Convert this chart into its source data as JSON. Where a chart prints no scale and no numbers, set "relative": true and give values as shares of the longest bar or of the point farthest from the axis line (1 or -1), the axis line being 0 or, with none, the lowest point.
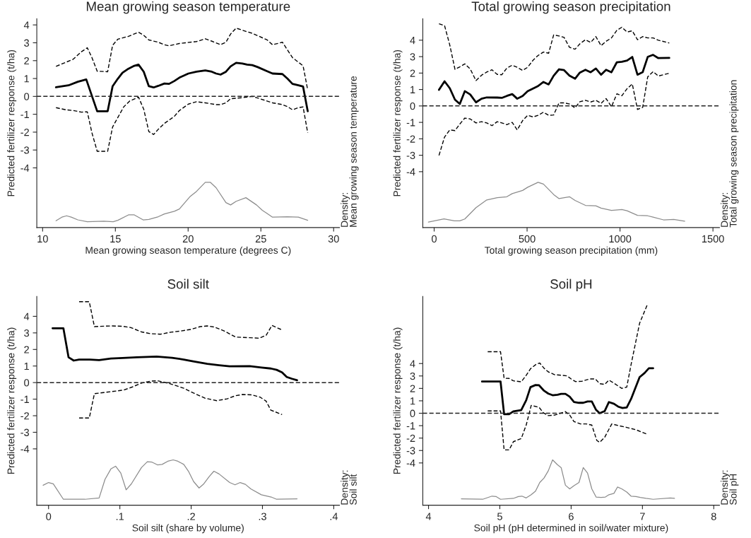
{
  "chart_data": [
    {
      "type": "line",
      "title": "Mean growing season temperature",
      "xlabel": "Mean growing season temperature (degrees C)",
      "ylabel": "Predicted fertilizer response (t/ha)",
      "xlim": [
        9.6,
        30.4
      ],
      "xticks": [
        10,
        15,
        20,
        25,
        30
      ],
      "ylim": [
        -7.34,
        4.34
      ],
      "yticks": [
        -4,
        -3,
        -2,
        -1,
        0,
        1,
        2,
        3,
        4
      ],
      "grid": false,
      "legend": false,
      "ref_lines": [
        {
          "axis": "y",
          "value": 0,
          "line_style": "dashed",
          "color": "#222222"
        }
      ],
      "series": [
        {
          "color": "#000000",
          "line_style": "solid",
          "x": [
            10.92,
            11.78,
            12.42,
            13.0,
            13.75,
            14.47,
            14.81,
            15.17,
            15.49,
            15.9,
            16.3,
            16.59,
            16.95,
            17.3,
            17.63,
            17.95,
            18.37,
            18.69,
            19.05,
            19.4,
            20.02,
            20.58,
            21.18,
            21.63,
            21.92,
            22.23,
            22.6,
            22.92,
            23.3,
            23.73,
            24.05,
            24.41,
            24.78,
            25.43,
            25.8,
            26.48,
            26.83,
            27.17,
            27.58,
            27.9,
            28.22
          ],
          "values": [
            0.51,
            0.62,
            0.82,
            0.95,
            -0.83,
            -0.83,
            0.57,
            0.99,
            1.32,
            1.55,
            1.71,
            1.78,
            1.38,
            0.57,
            0.5,
            0.59,
            0.72,
            0.7,
            0.86,
            1.05,
            1.28,
            1.38,
            1.45,
            1.38,
            1.28,
            1.22,
            1.38,
            1.68,
            1.88,
            1.84,
            1.78,
            1.75,
            1.64,
            1.41,
            1.28,
            1.25,
            0.99,
            0.7,
            0.62,
            0.55,
            -0.83
          ]
        },
        {
          "color": "#000000",
          "line_style": "dashed",
          "x": [
            10.92,
            11.6,
            12.1,
            12.67,
            13.07,
            13.39,
            13.75,
            14.47,
            14.81,
            15.17,
            15.9,
            16.59,
            16.95,
            17.3,
            17.95,
            18.37,
            18.69,
            19.4,
            20.58,
            21.18,
            21.63,
            22.23,
            22.6,
            22.92,
            23.3,
            24.05,
            24.41,
            25.43,
            25.8,
            26.48,
            27.17,
            27.9,
            28.22
          ],
          "values": [
            1.68,
            1.91,
            2.08,
            2.5,
            2.72,
            2.17,
            1.41,
            1.38,
            2.86,
            3.2,
            3.36,
            3.59,
            3.42,
            3.16,
            3.03,
            2.89,
            2.83,
            2.96,
            3.07,
            3.22,
            3.09,
            2.89,
            3.03,
            3.49,
            3.82,
            3.62,
            3.53,
            3.16,
            2.89,
            3.03,
            2.17,
            1.71,
            0.36
          ]
        },
        {
          "color": "#000000",
          "line_style": "dashed",
          "x": [
            10.92,
            11.6,
            12.1,
            12.67,
            13.07,
            13.39,
            13.75,
            14.47,
            14.81,
            15.17,
            15.57,
            15.98,
            16.59,
            16.95,
            17.3,
            17.63,
            17.95,
            18.37,
            19.05,
            19.4,
            20.02,
            20.58,
            21.18,
            21.92,
            22.23,
            22.6,
            22.92,
            23.73,
            24.41,
            24.78,
            25.8,
            26.48,
            26.83,
            27.17,
            27.58,
            27.9,
            28.22
          ],
          "values": [
            -0.63,
            -0.75,
            -0.79,
            -0.88,
            -0.86,
            -2.04,
            -3.07,
            -3.07,
            -1.71,
            -1.18,
            -0.59,
            -0.26,
            -0.04,
            -0.72,
            -1.97,
            -2.13,
            -1.84,
            -1.51,
            -1.12,
            -0.79,
            -0.43,
            -0.3,
            -0.36,
            -0.46,
            -0.46,
            -0.36,
            -0.13,
            -0.07,
            0.0,
            -0.09,
            -0.36,
            -0.46,
            -0.57,
            -0.75,
            -0.63,
            -0.59,
            -2.04
          ]
        }
      ]
    },
    {
      "type": "line",
      "relative": true,
      "ylabel": "Density:\nMean growing season temperature",
      "xlim": [
        9.6,
        30.4
      ],
      "tick_labels": false,
      "series": [
        {
          "color": "#8c8c8c",
          "line_style": "solid",
          "x": [
            10.92,
            11.32,
            11.65,
            11.97,
            12.42,
            13.07,
            14.2,
            14.85,
            15.17,
            15.9,
            16.3,
            16.91,
            17.3,
            17.95,
            18.37,
            19.05,
            19.4,
            19.69,
            20.15,
            20.58,
            21.18,
            21.52,
            21.92,
            22.6,
            22.92,
            23.3,
            23.97,
            24.7,
            25.1,
            25.43,
            25.8,
            26.83,
            27.58,
            28.22
          ],
          "values": [
            0.15,
            0.23,
            0.26,
            0.23,
            0.17,
            0.13,
            0.14,
            0.13,
            0.16,
            0.28,
            0.28,
            0.17,
            0.18,
            0.24,
            0.3,
            0.36,
            0.41,
            0.52,
            0.69,
            0.8,
            1.0,
            1.0,
            0.88,
            0.55,
            0.5,
            0.58,
            0.66,
            0.5,
            0.38,
            0.31,
            0.23,
            0.24,
            0.23,
            0.16
          ]
        }
      ]
    },
    {
      "type": "line",
      "title": "Total growing season precipitation",
      "xlabel": "Total growing season precipitation (mm)",
      "ylabel": "Predicted fertilizer response (t/ha)",
      "xlim": [
        -61,
        1535
      ],
      "xticks": [
        0,
        500,
        1000,
        1500
      ],
      "ylim": [
        -7.4,
        5.3
      ],
      "yticks": [
        -4,
        -3,
        -2,
        -1,
        0,
        1,
        2,
        3,
        4
      ],
      "grid": false,
      "legend": false,
      "ref_lines": [
        {
          "axis": "y",
          "value": 0,
          "line_style": "dashed",
          "color": "#222222"
        }
      ],
      "series": [
        {
          "color": "#000000",
          "line_style": "solid",
          "x": [
            26,
            56,
            84,
            112,
            138,
            165,
            194,
            225,
            255,
            283,
            339,
            364,
            391,
            420,
            447,
            476,
            503,
            559,
            588,
            616,
            643,
            672,
            699,
            728,
            758,
            784,
            814,
            842,
            870,
            898,
            925,
            954,
            983,
            1010,
            1038,
            1066,
            1094,
            1122,
            1149,
            1178,
            1206,
            1265
          ],
          "values": [
            0.98,
            1.5,
            1.08,
            0.38,
            0.12,
            0.9,
            0.7,
            0.22,
            0.44,
            0.52,
            0.51,
            0.49,
            0.61,
            0.72,
            0.44,
            0.61,
            0.9,
            1.21,
            1.46,
            1.31,
            1.84,
            2.23,
            2.18,
            1.84,
            1.66,
            2.03,
            2.2,
            2.05,
            2.28,
            1.9,
            2.2,
            2.05,
            2.66,
            2.69,
            2.76,
            2.98,
            1.9,
            2.06,
            2.98,
            3.11,
            2.91,
            2.92
          ]
        },
        {
          "color": "#000000",
          "line_style": "dashed",
          "x": [
            26,
            56,
            84,
            112,
            138,
            165,
            194,
            225,
            255,
            283,
            311,
            339,
            364,
            391,
            420,
            447,
            476,
            503,
            532,
            559,
            588,
            616,
            643,
            672,
            699,
            728,
            758,
            784,
            814,
            842,
            870,
            898,
            925,
            954,
            983,
            1010,
            1038,
            1066,
            1094,
            1122,
            1149,
            1178,
            1206,
            1265
          ],
          "values": [
            5.0,
            4.89,
            3.71,
            2.23,
            2.38,
            2.56,
            2.25,
            1.54,
            1.87,
            2.06,
            2.2,
            1.92,
            1.9,
            2.3,
            2.48,
            2.35,
            2.16,
            2.35,
            2.78,
            3.07,
            3.28,
            3.21,
            4.32,
            4.26,
            4.17,
            3.57,
            3.45,
            3.78,
            4.03,
            3.86,
            4.22,
            3.67,
            3.93,
            4.14,
            4.6,
            4.79,
            4.5,
            4.57,
            4.03,
            4.22,
            4.14,
            4.14,
            4.0,
            3.83
          ]
        },
        {
          "color": "#000000",
          "line_style": "dashed",
          "x": [
            26,
            56,
            84,
            112,
            138,
            165,
            194,
            225,
            255,
            283,
            311,
            339,
            364,
            391,
            420,
            447,
            476,
            503,
            532,
            559,
            588,
            616,
            643,
            672,
            699,
            728,
            758,
            784,
            814,
            842,
            870,
            898,
            925,
            954,
            983,
            1010,
            1038,
            1066,
            1094,
            1122,
            1149,
            1178,
            1206,
            1265
          ],
          "values": [
            -3.01,
            -1.89,
            -1.46,
            -1.5,
            -1.1,
            -0.74,
            -0.79,
            -1.03,
            -0.96,
            -1.03,
            -1.2,
            -0.96,
            -1.03,
            -1.14,
            -1.0,
            -1.46,
            -0.89,
            -0.57,
            -0.67,
            -0.57,
            -0.38,
            -0.57,
            -0.55,
            0.19,
            0.19,
            0.12,
            -0.12,
            0.26,
            0.34,
            0.24,
            0.34,
            0.16,
            0.45,
            -0.05,
            0.74,
            0.62,
            1.05,
            1.34,
            -0.21,
            -0.09,
            1.77,
            2.09,
            1.82,
            1.99
          ]
        }
      ]
    },
    {
      "type": "line",
      "relative": true,
      "ylabel": "Density:\nTotal growing season precipitation",
      "xlim": [
        -61,
        1535
      ],
      "tick_labels": false,
      "series": [
        {
          "color": "#8c8c8c",
          "line_style": "solid",
          "x": [
            -31,
            53,
            109,
            138,
            165,
            225,
            283,
            339,
            391,
            420,
            476,
            503,
            559,
            588,
            643,
            672,
            728,
            758,
            814,
            870,
            898,
            954,
            1010,
            1038,
            1094,
            1149,
            1178,
            1234,
            1289,
            1348
          ],
          "values": [
            0.12,
            0.19,
            0.15,
            0.15,
            0.19,
            0.44,
            0.61,
            0.66,
            0.68,
            0.75,
            0.82,
            0.89,
            1.0,
            0.96,
            0.73,
            0.64,
            0.68,
            0.6,
            0.49,
            0.48,
            0.43,
            0.38,
            0.4,
            0.37,
            0.27,
            0.26,
            0.23,
            0.17,
            0.18,
            0.14
          ]
        }
      ]
    },
    {
      "type": "line",
      "title": "Soil silt",
      "xlabel": "Soil silt (share by volume)",
      "ylabel": "Predicted fertilizer response (t/ha)",
      "xlim": [
        -0.0165,
        0.408
      ],
      "xticks": [
        0,
        {
          "value": 0.1,
          "label": ".1"
        },
        {
          "value": 0.2,
          "label": ".2"
        },
        {
          "value": 0.3,
          "label": ".3"
        },
        {
          "value": 0.4,
          "label": ".4"
        }
      ],
      "ylim": [
        -7.4,
        5.2
      ],
      "yticks": [
        -4,
        -3,
        -2,
        -1,
        0,
        1,
        2,
        3,
        4
      ],
      "grid": false,
      "legend": false,
      "ref_lines": [
        {
          "axis": "y",
          "value": 0,
          "line_style": "dashed",
          "color": "#222222"
        }
      ],
      "series": [
        {
          "color": "#000000",
          "line_style": "solid",
          "x": [
            0.0056,
            0.0208,
            0.028,
            0.0353,
            0.0429,
            0.0577,
            0.0709,
            0.0874,
            0.1039,
            0.1237,
            0.1517,
            0.1732,
            0.1896,
            0.2028,
            0.2226,
            0.2391,
            0.254,
            0.282,
            0.2985,
            0.3117,
            0.3199,
            0.3275,
            0.3341,
            0.3414,
            0.3486
          ],
          "values": [
            3.28,
            3.28,
            1.53,
            1.33,
            1.39,
            1.39,
            1.36,
            1.45,
            1.48,
            1.53,
            1.57,
            1.5,
            1.39,
            1.28,
            1.13,
            1.05,
            0.98,
            0.99,
            0.91,
            0.85,
            0.77,
            0.62,
            0.34,
            0.23,
            0.14
          ]
        },
        {
          "color": "#000000",
          "line_style": "dashed",
          "x": [
            0.0429,
            0.0571,
            0.0643,
            0.0874,
            0.1039,
            0.1154,
            0.1303,
            0.1435,
            0.1567,
            0.1715,
            0.1847,
            0.1995,
            0.2127,
            0.2226,
            0.2325,
            0.2457,
            0.2622,
            0.282,
            0.2952,
            0.3051,
            0.3133,
            0.3275
          ],
          "values": [
            4.88,
            4.88,
            3.38,
            3.42,
            3.4,
            3.32,
            3.06,
            2.95,
            2.92,
            3.04,
            3.11,
            3.21,
            3.38,
            3.42,
            3.35,
            3.13,
            2.75,
            2.71,
            2.68,
            2.85,
            3.45,
            3.18
          ]
        },
        {
          "color": "#000000",
          "line_style": "dashed",
          "x": [
            0.0429,
            0.0571,
            0.0643,
            0.0775,
            0.0874,
            0.1055,
            0.1171,
            0.1303,
            0.1435,
            0.1527,
            0.1699,
            0.1896,
            0.2028,
            0.2193,
            0.2358,
            0.2507,
            0.2622,
            0.2721,
            0.2853,
            0.2968,
            0.3051,
            0.3117,
            0.3275
          ],
          "values": [
            -2.14,
            -2.14,
            -0.67,
            -0.6,
            -0.55,
            -0.45,
            -0.27,
            -0.03,
            0.09,
            0.11,
            -0.06,
            -0.34,
            -0.62,
            -0.94,
            -1.09,
            -0.98,
            -0.79,
            -0.72,
            -0.74,
            -0.88,
            -1.12,
            -1.66,
            -1.93
          ]
        }
      ]
    },
    {
      "type": "line",
      "relative": true,
      "ylabel": "Density:\nSoil silt",
      "xlim": [
        -0.0165,
        0.408
      ],
      "tick_labels": false,
      "series": [
        {
          "color": "#8c8c8c",
          "line_style": "solid",
          "x": [
            -0.0076,
            0,
            0.0066,
            0.0208,
            0.0511,
            0.0709,
            0.0792,
            0.0874,
            0.094,
            0.1013,
            0.1088,
            0.1161,
            0.1303,
            0.1385,
            0.1451,
            0.1527,
            0.1593,
            0.1672,
            0.1748,
            0.1814,
            0.1896,
            0.1962,
            0.2035,
            0.2111,
            0.2177,
            0.2253,
            0.2319,
            0.2391,
            0.254,
            0.2615,
            0.2688,
            0.2761,
            0.2836,
            0.2985,
            0.3123,
            0.3199,
            0.3486
          ],
          "values": [
            0.44,
            0.5,
            0.47,
            0.13,
            0.13,
            0.16,
            0.57,
            0.8,
            0.86,
            0.71,
            0.34,
            0.47,
            0.83,
            0.96,
            0.95,
            0.89,
            0.9,
            0.97,
            1.0,
            0.97,
            0.9,
            0.75,
            0.52,
            0.38,
            0.47,
            0.63,
            0.75,
            0.69,
            0.5,
            0.45,
            0.5,
            0.46,
            0.36,
            0.23,
            0.18,
            0.13,
            0.14
          ]
        }
      ]
    },
    {
      "type": "line",
      "title": "Soil pH",
      "xlabel": "Soil pH (pH determined in soil/water mixture)",
      "ylabel": "Predicted fertilizer response (t/ha)",
      "xlim": [
        3.92,
        8.08
      ],
      "xticks": [
        4,
        5,
        6,
        7,
        8
      ],
      "ylim": [
        -7.4,
        9.4
      ],
      "yticks": [
        -4,
        -3,
        -2,
        -1,
        0,
        1,
        2,
        3,
        4
      ],
      "grid": false,
      "legend": false,
      "ref_lines": [
        {
          "axis": "y",
          "value": 0,
          "line_style": "dashed",
          "color": "#222222"
        }
      ],
      "series": [
        {
          "color": "#000000",
          "line_style": "solid",
          "x": [
            4.75,
            5.01,
            5.06,
            5.13,
            5.19,
            5.3,
            5.37,
            5.43,
            5.5,
            5.55,
            5.62,
            5.68,
            5.74,
            5.81,
            5.86,
            5.92,
            5.98,
            6.04,
            6.11,
            6.17,
            6.23,
            6.29,
            6.35,
            6.4,
            6.47,
            6.53,
            6.6,
            6.66,
            6.72,
            6.78,
            6.84,
            6.96,
            7.03,
            7.09,
            7.15
          ],
          "values": [
            2.55,
            2.55,
            -0.08,
            -0.08,
            0.15,
            0.25,
            1.05,
            2.1,
            2.27,
            2.25,
            1.81,
            1.58,
            1.45,
            1.49,
            1.56,
            1.56,
            1.33,
            0.91,
            0.84,
            0.84,
            0.95,
            0.95,
            0.27,
            0.0,
            0.17,
            0.9,
            0.76,
            0.53,
            0.42,
            0.46,
            1.14,
            2.9,
            3.24,
            3.62,
            3.62
          ]
        },
        {
          "color": "#000000",
          "line_style": "dashed",
          "x": [
            4.83,
            5.01,
            5.06,
            5.13,
            5.19,
            5.3,
            5.37,
            5.43,
            5.51,
            5.56,
            5.62,
            5.68,
            5.77,
            5.87,
            5.94,
            6.0,
            6.06,
            6.15,
            6.26,
            6.34,
            6.4,
            6.47,
            6.53,
            6.61,
            6.71,
            6.78,
            6.84,
            6.96,
            7.07
          ],
          "values": [
            4.95,
            4.95,
            2.82,
            2.8,
            2.61,
            2.53,
            3.05,
            3.58,
            3.94,
            4.04,
            3.62,
            3.33,
            3.1,
            3.05,
            3.01,
            2.76,
            2.55,
            2.57,
            2.76,
            2.76,
            2.38,
            2.32,
            2.67,
            2.38,
            2.0,
            2.1,
            3.9,
            7.24,
            8.76
          ]
        },
        {
          "color": "#000000",
          "line_style": "dashed",
          "x": [
            4.83,
            5.01,
            5.06,
            5.13,
            5.19,
            5.3,
            5.37,
            5.44,
            5.55,
            5.61,
            5.68,
            5.77,
            5.87,
            5.92,
            5.98,
            6.04,
            6.13,
            6.21,
            6.29,
            6.36,
            6.4,
            6.47,
            6.57,
            6.66,
            6.78,
            6.91,
            7.06
          ],
          "values": [
            0.19,
            0.19,
            -2.95,
            -2.95,
            -2.29,
            -2.04,
            -0.95,
            0.63,
            0.48,
            0.04,
            -0.19,
            -0.15,
            0.04,
            0.13,
            -0.15,
            -0.67,
            -0.86,
            -0.86,
            -0.95,
            -2.19,
            -2.34,
            -1.94,
            -0.86,
            -0.99,
            -1.14,
            -1.33,
            -1.68
          ]
        }
      ]
    },
    {
      "type": "line",
      "relative": true,
      "ylabel": "Density:\nSoil pH",
      "xlim": [
        3.92,
        8.08
      ],
      "tick_labels": false,
      "series": [
        {
          "color": "#8c8c8c",
          "line_style": "solid",
          "x": [
            4.46,
            4.76,
            4.89,
            4.95,
            5.01,
            5.19,
            5.26,
            5.31,
            5.37,
            5.44,
            5.5,
            5.56,
            5.62,
            5.68,
            5.74,
            5.81,
            5.86,
            5.92,
            5.98,
            6.04,
            6.11,
            6.17,
            6.23,
            6.29,
            6.35,
            6.42,
            6.48,
            6.53,
            6.6,
            6.65,
            6.71,
            6.78,
            6.84,
            6.91,
            6.97,
            7.05,
            7.15,
            7.39,
            7.45
          ],
          "values": [
            0.14,
            0.13,
            0.2,
            0.19,
            0.13,
            0.15,
            0.19,
            0.2,
            0.16,
            0.23,
            0.31,
            0.5,
            0.6,
            0.76,
            1.0,
            0.89,
            0.83,
            0.44,
            0.36,
            0.43,
            0.5,
            0.83,
            0.71,
            0.36,
            0.18,
            0.17,
            0.18,
            0.23,
            0.26,
            0.4,
            0.36,
            0.29,
            0.2,
            0.19,
            0.17,
            0.15,
            0.13,
            0.16,
            0.15
          ]
        }
      ]
    }
  ]
}
